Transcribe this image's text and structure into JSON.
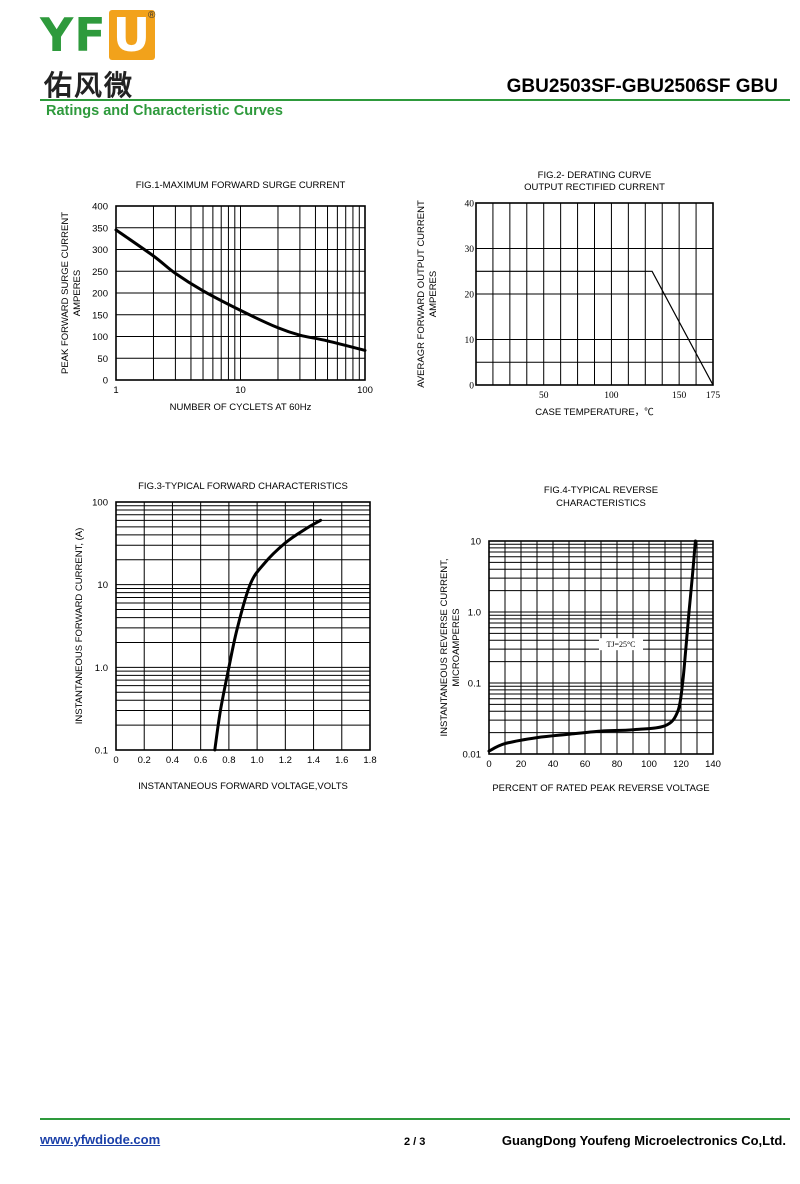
{
  "header": {
    "logo_letters": "YF",
    "logo_u": "U",
    "logo_reg": "®",
    "logo_cn": "佑风微",
    "title": "GBU2503SF-GBU2506SF  GBU",
    "section_title": "Ratings and Characteristic Curves"
  },
  "footer": {
    "website": "www.yfwdiode.com",
    "page": "2 / 3",
    "company": "GuangDong Youfeng Microelectronics Co,Ltd."
  },
  "colors": {
    "brand_green": "#2e9a3c",
    "brand_orange": "#f2a21b",
    "link_blue": "#1a3fa8"
  },
  "chart_data": [
    {
      "id": "fig1",
      "type": "line",
      "title": "FIG.1-MAXIMUM FORWARD SURGE CURRENT",
      "title2": "",
      "xlabel": "NUMBER OF CYCLETS AT 60Hz",
      "ylabel": "PEAK FORWARD SURGE CURRENT",
      "ylabel2": "AMPERES",
      "xscale": "log",
      "xlim": [
        1,
        100
      ],
      "ylim": [
        0,
        400
      ],
      "xticks": [
        1,
        10,
        100
      ],
      "xtick_labels": [
        "1",
        "10",
        "100"
      ],
      "yticks": [
        0,
        50,
        100,
        150,
        200,
        250,
        300,
        350,
        400
      ],
      "ytick_labels": [
        "0",
        "50",
        "100",
        "150",
        "200",
        "250",
        "300",
        "350",
        "400"
      ],
      "grid": true,
      "x": [
        1,
        2,
        3,
        5,
        10,
        20,
        30,
        50,
        100
      ],
      "y": [
        345,
        285,
        245,
        205,
        160,
        120,
        103,
        90,
        68
      ]
    },
    {
      "id": "fig2",
      "type": "line",
      "title": "FIG.2- DERATING CURVE",
      "title2": "OUTPUT RECTIFIED CURRENT",
      "xlabel": "CASE TEMPERATURE，℃",
      "ylabel": "AVERAGR  FORWARD  OUTPUT CURRENT",
      "ylabel2": "AMPERES",
      "xscale": "linear",
      "xlim": [
        0,
        175
      ],
      "ylim": [
        0,
        40
      ],
      "xticks": [
        50,
        100,
        150,
        175
      ],
      "xtick_labels": [
        "50",
        "100",
        "150",
        "175"
      ],
      "yticks": [
        0,
        10,
        20,
        30,
        40
      ],
      "ytick_labels": [
        "0",
        "10",
        "20",
        "30",
        "40"
      ],
      "grid": true,
      "x": [
        0,
        130,
        175
      ],
      "y": [
        25,
        25,
        0
      ]
    },
    {
      "id": "fig3",
      "type": "line",
      "title": "FIG.3-TYPICAL FORWARD CHARACTERISTICS",
      "title2": "",
      "xlabel": "INSTANTANEOUS FORWARD VOLTAGE,VOLTS",
      "ylabel": "INSTANTANEOUS FORWARD CURRENT, (A)",
      "ylabel2": "",
      "xscale": "linear",
      "yscale": "log",
      "xlim": [
        0,
        1.8
      ],
      "ylim": [
        0.1,
        100
      ],
      "xticks": [
        0,
        0.2,
        0.4,
        0.6,
        0.8,
        1.0,
        1.2,
        1.4,
        1.6,
        1.8
      ],
      "xtick_labels": [
        "0",
        "0.2",
        "0.4",
        "0.6",
        "0.8",
        "1.0",
        "1.2",
        "1.4",
        "1.6",
        "1.8"
      ],
      "yticks": [
        0.1,
        1,
        10,
        100
      ],
      "ytick_labels": [
        "0.1",
        "1.0",
        "10",
        "100"
      ],
      "grid": true,
      "x": [
        0.7,
        0.74,
        0.8,
        0.86,
        0.95,
        1.05,
        1.2,
        1.35,
        1.45
      ],
      "y": [
        0.1,
        0.3,
        1.0,
        3.0,
        10,
        18,
        32,
        48,
        60
      ]
    },
    {
      "id": "fig4",
      "type": "line",
      "title": "FIG.4-TYPICAL REVERSE",
      "title2": "CHARACTERISTICS",
      "xlabel": "PERCENT OF RATED PEAK REVERSE VOLTAGE",
      "ylabel": "INSTANTANEOUS  REVERSE  CURRENT,",
      "ylabel2": "MICROAMPERES",
      "xscale": "linear",
      "yscale": "log",
      "xlim": [
        0,
        140
      ],
      "ylim": [
        0.01,
        10
      ],
      "xticks": [
        0,
        20,
        40,
        60,
        80,
        100,
        120,
        140
      ],
      "xtick_labels": [
        "0",
        "20",
        "40",
        "60",
        "80",
        "100",
        "120",
        "140"
      ],
      "yticks": [
        0.01,
        0.1,
        1,
        10
      ],
      "ytick_labels": [
        "0.01",
        "0.1",
        "1.0",
        "10"
      ],
      "grid": true,
      "annotation": "TJ=25°C",
      "x": [
        0,
        10,
        30,
        50,
        70,
        90,
        110,
        118,
        121,
        123,
        125,
        127,
        129
      ],
      "y": [
        0.011,
        0.014,
        0.017,
        0.019,
        0.021,
        0.022,
        0.025,
        0.04,
        0.1,
        0.3,
        1.0,
        3.0,
        10
      ]
    }
  ]
}
